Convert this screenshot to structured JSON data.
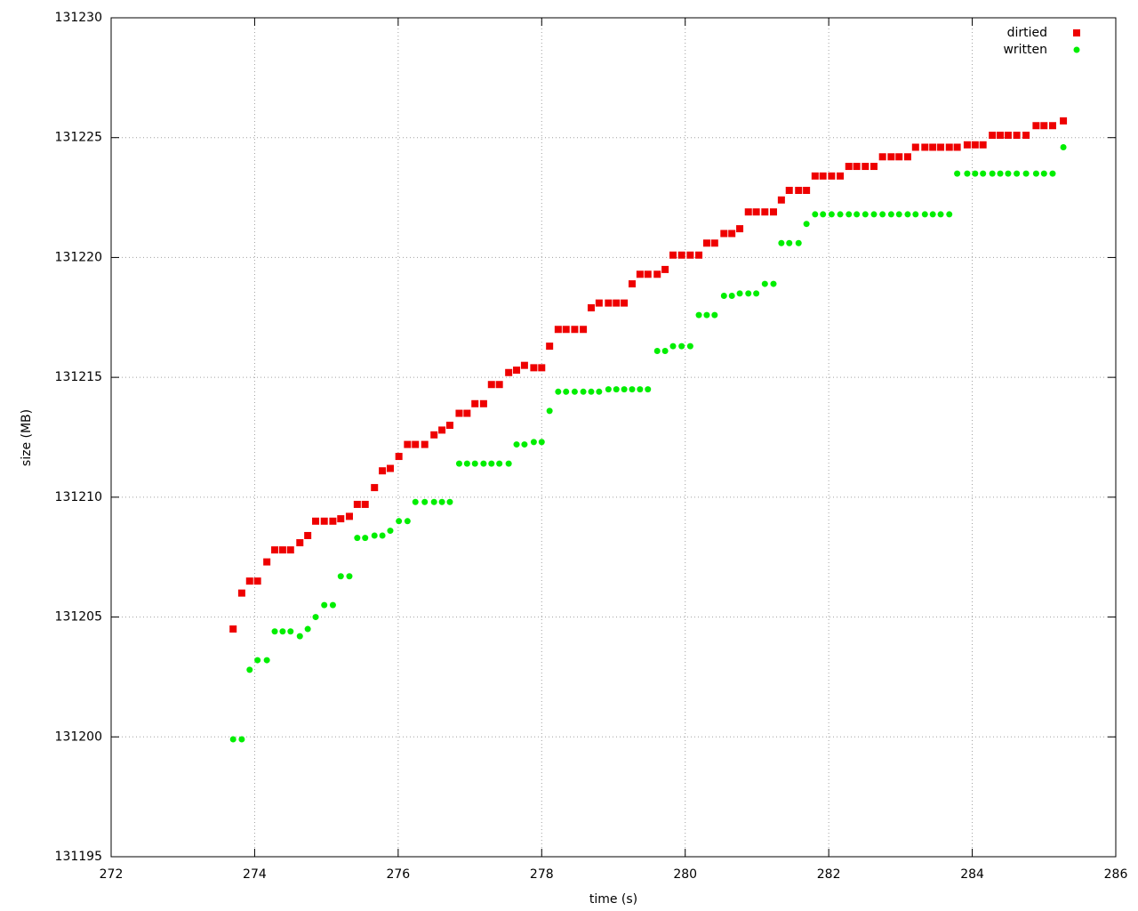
{
  "chart_data": {
    "type": "scatter",
    "x_label": "time (s)",
    "y_label": "size (MB)",
    "xlim": [
      272,
      286
    ],
    "xticks": [
      272,
      274,
      276,
      278,
      280,
      282,
      284,
      286
    ],
    "ylim": [
      131195,
      131230
    ],
    "yticks": [
      131195,
      131200,
      131205,
      131210,
      131215,
      131220,
      131225,
      131230
    ],
    "grid": true,
    "legend": "top-right",
    "x": [
      273.7,
      273.82,
      273.93,
      274.04,
      274.17,
      274.28,
      274.39,
      274.5,
      274.63,
      274.74,
      274.85,
      274.97,
      275.09,
      275.2,
      275.32,
      275.43,
      275.54,
      275.67,
      275.78,
      275.89,
      276.01,
      276.13,
      276.24,
      276.37,
      276.5,
      276.61,
      276.72,
      276.85,
      276.96,
      277.07,
      277.19,
      277.3,
      277.41,
      277.54,
      277.65,
      277.76,
      277.89,
      278.0,
      278.11,
      278.23,
      278.34,
      278.46,
      278.58,
      278.69,
      278.8,
      278.93,
      279.04,
      279.15,
      279.26,
      279.37,
      279.48,
      279.61,
      279.72,
      279.83,
      279.95,
      280.07,
      280.19,
      280.3,
      280.41,
      280.54,
      280.65,
      280.76,
      280.88,
      280.99,
      281.11,
      281.23,
      281.34,
      281.45,
      281.58,
      281.69,
      281.81,
      281.92,
      282.04,
      282.16,
      282.28,
      282.39,
      282.51,
      282.63,
      282.75,
      282.87,
      282.98,
      283.1,
      283.21,
      283.34,
      283.45,
      283.56,
      283.68,
      283.79,
      283.93,
      284.04,
      284.15,
      284.28,
      284.39,
      284.5,
      284.62,
      284.75,
      284.89,
      285.0,
      285.12,
      285.27
    ],
    "series": [
      {
        "name": "dirtied",
        "color": "#ee0000",
        "marker": "square",
        "values": [
          131204.5,
          131206.0,
          131206.5,
          131206.5,
          131207.3,
          131207.8,
          131207.8,
          131207.8,
          131208.1,
          131208.4,
          131209.0,
          131209.0,
          131209.0,
          131209.1,
          131209.2,
          131209.7,
          131209.7,
          131210.4,
          131211.1,
          131211.2,
          131211.7,
          131212.2,
          131212.2,
          131212.2,
          131212.6,
          131212.8,
          131213.0,
          131213.5,
          131213.5,
          131213.9,
          131213.9,
          131214.7,
          131214.7,
          131215.2,
          131215.3,
          131215.5,
          131215.4,
          131215.4,
          131216.3,
          131217.0,
          131217.0,
          131217.0,
          131217.0,
          131217.9,
          131218.1,
          131218.1,
          131218.1,
          131218.1,
          131218.9,
          131219.3,
          131219.3,
          131219.3,
          131219.5,
          131220.1,
          131220.1,
          131220.1,
          131220.1,
          131220.6,
          131220.6,
          131221.0,
          131221.0,
          131221.2,
          131221.9,
          131221.9,
          131221.9,
          131221.9,
          131222.4,
          131222.8,
          131222.8,
          131222.8,
          131223.4,
          131223.4,
          131223.4,
          131223.4,
          131223.8,
          131223.8,
          131223.8,
          131223.8,
          131224.2,
          131224.2,
          131224.2,
          131224.2,
          131224.6,
          131224.6,
          131224.6,
          131224.6,
          131224.6,
          131224.6,
          131224.7,
          131224.7,
          131224.7,
          131225.1,
          131225.1,
          131225.1,
          131225.1,
          131225.1,
          131225.5,
          131225.5,
          131225.5,
          131225.7
        ]
      },
      {
        "name": "written",
        "color": "#00ee00",
        "marker": "circle",
        "values": [
          131199.9,
          131199.9,
          131202.8,
          131203.2,
          131203.2,
          131204.4,
          131204.4,
          131204.4,
          131204.2,
          131204.5,
          131205.0,
          131205.5,
          131205.5,
          131206.7,
          131206.7,
          131208.3,
          131208.3,
          131208.4,
          131208.4,
          131208.6,
          131209.0,
          131209.0,
          131209.8,
          131209.8,
          131209.8,
          131209.8,
          131209.8,
          131211.4,
          131211.4,
          131211.4,
          131211.4,
          131211.4,
          131211.4,
          131211.4,
          131212.2,
          131212.2,
          131212.3,
          131212.3,
          131213.6,
          131214.4,
          131214.4,
          131214.4,
          131214.4,
          131214.4,
          131214.4,
          131214.5,
          131214.5,
          131214.5,
          131214.5,
          131214.5,
          131214.5,
          131216.1,
          131216.1,
          131216.3,
          131216.3,
          131216.3,
          131217.6,
          131217.6,
          131217.6,
          131218.4,
          131218.4,
          131218.5,
          131218.5,
          131218.5,
          131218.9,
          131218.9,
          131220.6,
          131220.6,
          131220.6,
          131221.4,
          131221.8,
          131221.8,
          131221.8,
          131221.8,
          131221.8,
          131221.8,
          131221.8,
          131221.8,
          131221.8,
          131221.8,
          131221.8,
          131221.8,
          131221.8,
          131221.8,
          131221.8,
          131221.8,
          131221.8,
          131223.5,
          131223.5,
          131223.5,
          131223.5,
          131223.5,
          131223.5,
          131223.5,
          131223.5,
          131223.5,
          131223.5,
          131223.5,
          131223.5,
          131224.6
        ]
      }
    ]
  }
}
